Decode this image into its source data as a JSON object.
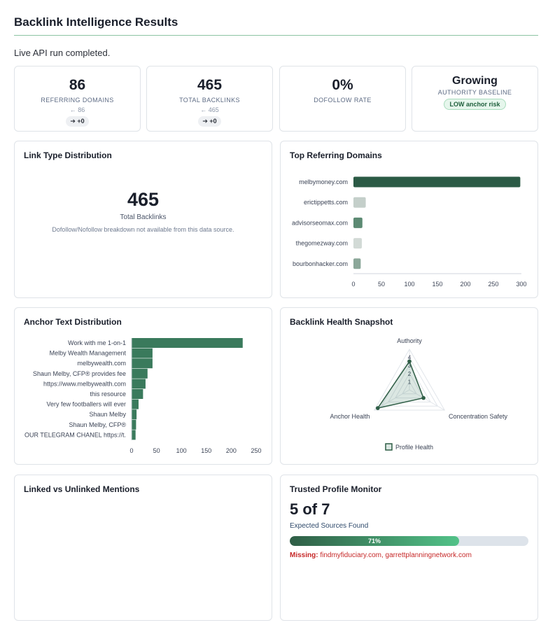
{
  "page": {
    "title": "Backlink Intelligence Results",
    "status": "Live API run completed."
  },
  "kpis": [
    {
      "value": "86",
      "label": "REFERRING DOMAINS",
      "prev": "← 86",
      "delta": "➔ +0"
    },
    {
      "value": "465",
      "label": "TOTAL BACKLINKS",
      "prev": "← 465",
      "delta": "➔ +0"
    },
    {
      "value": "0%",
      "label": "DOFOLLOW RATE"
    },
    {
      "value": "Growing",
      "label": "AUTHORITY BASELINE",
      "badge": "LOW anchor risk"
    }
  ],
  "link_type": {
    "title": "Link Type Distribution",
    "total": "465",
    "total_label": "Total Backlinks",
    "note": "Dofollow/Nofollow breakdown not available from this data source."
  },
  "top_domains": {
    "title": "Top Referring Domains"
  },
  "anchor_text": {
    "title": "Anchor Text Distribution"
  },
  "health": {
    "title": "Backlink Health Snapshot",
    "legend": "Profile Health"
  },
  "mentions": {
    "title": "Linked vs Unlinked Mentions"
  },
  "trusted": {
    "title": "Trusted Profile Monitor",
    "count": "5 of 7",
    "sub": "Expected Sources Found",
    "percent_label": "71%",
    "fraction": 0.71,
    "missing_label": "Missing:",
    "missing_list": "findmyfiduciary.com, garrettplanningnetwork.com"
  },
  "colors": {
    "accent": "#2f5e46",
    "bar_green": "#3a7a5c",
    "missing_red": "#c62828"
  },
  "chart_data": [
    {
      "type": "bar",
      "orientation": "horizontal",
      "categories": [
        "melbymoney.com",
        "erictippetts.com",
        "advisorseomax.com",
        "thegomezway.com",
        "bourbonhacker.com"
      ],
      "values": [
        298,
        22,
        16,
        15,
        13
      ],
      "colors": [
        "#2b5a45",
        "#c4cfca",
        "#5c8a73",
        "#d2dad6",
        "#8ba799"
      ],
      "xticks": [
        "0",
        "50",
        "100",
        "150",
        "200",
        "250",
        "300"
      ],
      "xlim": [
        0,
        300
      ],
      "grid": false
    },
    {
      "type": "bar",
      "orientation": "horizontal",
      "categories": [
        "Work with me 1-on-1",
        "Melby Wealth Management",
        "melbywealth.com",
        "Shaun Melby, CFP® provides fee",
        "https://www.melbywealth.com",
        "this resource",
        "Very few footballers will ever",
        "Shaun Melby",
        "Shaun Melby, CFP®",
        "OUR TELEGRAM CHANEL https://t."
      ],
      "values": [
        223,
        42,
        42,
        32,
        28,
        23,
        14,
        10,
        9,
        8
      ],
      "xticks": [
        "0",
        "50",
        "100",
        "150",
        "200",
        "250"
      ],
      "xlim": [
        0,
        250
      ],
      "grid": false
    },
    {
      "type": "radar",
      "axes": [
        "Authority",
        "Concentration Safety",
        "Anchor Health"
      ],
      "rticks": [
        "1",
        "2",
        "3",
        "4"
      ],
      "rlim": [
        0,
        5
      ],
      "series": [
        {
          "name": "Profile Health",
          "values": [
            3.5,
            2,
            4.5
          ]
        }
      ]
    }
  ]
}
